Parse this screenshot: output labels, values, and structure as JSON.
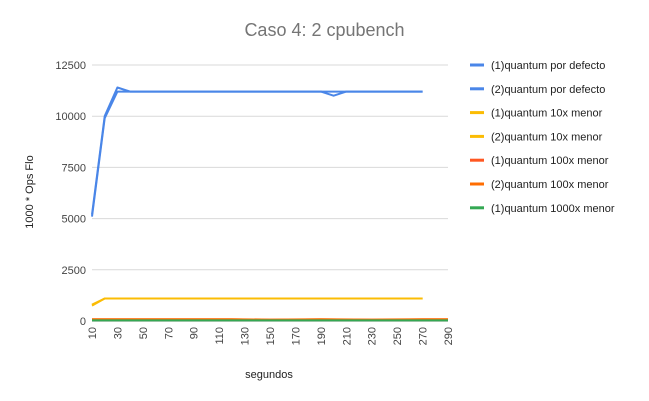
{
  "chart_data": {
    "type": "line",
    "title": "Caso 4: 2 cpubench",
    "xlabel": "segundos",
    "ylabel": "1000 * Ops Flo",
    "x_ticks": [
      "10",
      "30",
      "50",
      "70",
      "90",
      "110",
      "130",
      "150",
      "170",
      "190",
      "210",
      "230",
      "250",
      "270",
      "290"
    ],
    "y_ticks": [
      "0",
      "2500",
      "5000",
      "7500",
      "10000",
      "12500"
    ],
    "xlim": [
      10,
      290
    ],
    "ylim": [
      0,
      12500
    ],
    "grid": true,
    "legend_position": "right",
    "series": [
      {
        "name": "(1)quantum por defecto",
        "color": "#4a86e8",
        "x": [
          10,
          20,
          30,
          40,
          50,
          60,
          70,
          80,
          90,
          100,
          110,
          120,
          130,
          140,
          150,
          160,
          170,
          180,
          190,
          200,
          210,
          220,
          230,
          240,
          250,
          260,
          270
        ],
        "values": [
          5100,
          9900,
          11200,
          11200,
          11200,
          11200,
          11200,
          11200,
          11200,
          11200,
          11200,
          11200,
          11200,
          11200,
          11200,
          11200,
          11200,
          11200,
          11200,
          11000,
          11200,
          11200,
          11200,
          11200,
          11200,
          11200,
          11200
        ]
      },
      {
        "name": "(2)quantum por defecto",
        "color": "#4a86e8",
        "x": [
          10,
          20,
          30,
          40,
          50,
          60,
          70,
          80,
          90,
          100,
          110,
          120,
          130,
          140,
          150,
          160,
          170,
          180,
          190,
          200,
          210,
          220,
          230,
          240,
          250,
          260,
          270
        ],
        "values": [
          5200,
          10000,
          11400,
          11200,
          11200,
          11200,
          11200,
          11200,
          11200,
          11200,
          11200,
          11200,
          11200,
          11200,
          11200,
          11200,
          11200,
          11200,
          11200,
          11200,
          11200,
          11200,
          11200,
          11200,
          11200,
          11200,
          11200
        ]
      },
      {
        "name": "(1)quantum 10x menor",
        "color": "#fbbc04",
        "x": [
          10,
          20,
          30,
          40,
          50,
          60,
          70,
          80,
          90,
          100,
          110,
          120,
          130,
          140,
          150,
          160,
          170,
          180,
          190,
          200,
          210,
          220,
          230,
          240,
          250,
          260,
          270
        ],
        "values": [
          750,
          1100,
          1100,
          1100,
          1100,
          1100,
          1100,
          1100,
          1100,
          1100,
          1100,
          1100,
          1100,
          1100,
          1100,
          1100,
          1100,
          1100,
          1100,
          1100,
          1100,
          1100,
          1100,
          1100,
          1100,
          1100,
          1100
        ]
      },
      {
        "name": "(2)quantum 10x menor",
        "color": "#fbbc04",
        "x": [
          10,
          20,
          30,
          40,
          50,
          60,
          70,
          80,
          90,
          100,
          110,
          120,
          130,
          140,
          150,
          160,
          170,
          180,
          190,
          200,
          210,
          220,
          230,
          240,
          250,
          260,
          270
        ],
        "values": [
          800,
          1100,
          1100,
          1100,
          1100,
          1100,
          1100,
          1100,
          1100,
          1100,
          1100,
          1100,
          1100,
          1100,
          1100,
          1100,
          1100,
          1100,
          1100,
          1100,
          1100,
          1100,
          1100,
          1100,
          1100,
          1100,
          1100
        ]
      },
      {
        "name": "(1)quantum 100x menor",
        "color": "#ff5722",
        "x": [
          10,
          40,
          80,
          120,
          150,
          190,
          230,
          270,
          290
        ],
        "values": [
          80,
          80,
          80,
          80,
          60,
          80,
          60,
          80,
          80
        ]
      },
      {
        "name": "(2)quantum 100x menor",
        "color": "#ff6d01",
        "x": [
          10,
          40,
          80,
          120,
          150,
          190,
          230,
          270,
          290
        ],
        "values": [
          90,
          90,
          90,
          90,
          70,
          90,
          70,
          90,
          90
        ]
      },
      {
        "name": "(1)quantum 1000x menor",
        "color": "#34a853",
        "x": [
          10,
          290
        ],
        "values": [
          30,
          30
        ]
      }
    ]
  }
}
